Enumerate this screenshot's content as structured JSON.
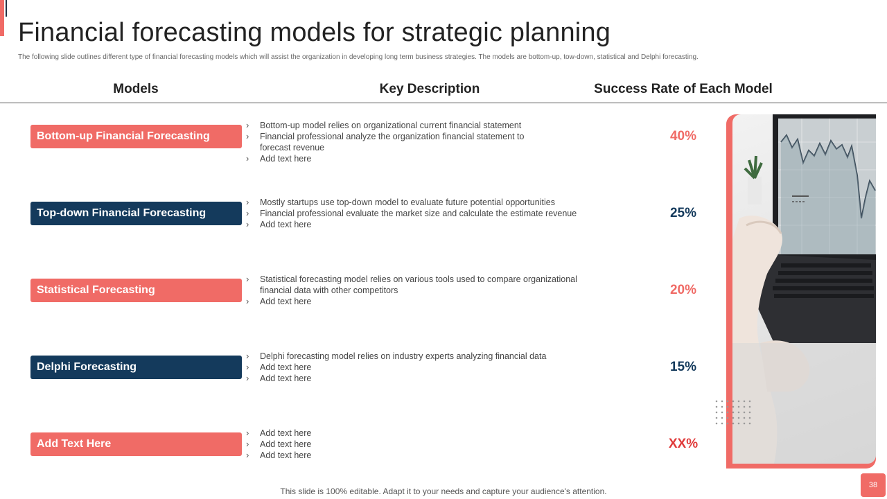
{
  "slide": {
    "title": "Financial forecasting models for strategic planning",
    "subtitle": "The following slide outlines different type of financial forecasting models which will assist the organization in developing long term business strategies. The models are bottom-up, tow-down, statistical and Delphi forecasting.",
    "headers": {
      "models": "Models",
      "description": "Key Description",
      "success": "Success Rate of Each Model"
    },
    "rows": [
      {
        "model": "Bottom-up Financial Forecasting",
        "bullets": [
          "Bottom-up model relies on organizational  current financial statement",
          "Financial  professional  analyze the organization  financial statement to forecast  revenue",
          "Add text here"
        ],
        "rate": "40%"
      },
      {
        "model": "Top-down Financial Forecasting",
        "bullets": [
          "Mostly startups use top-down  model to evaluate  future  potential opportunities",
          "Financial  professional  evaluate  the market size and calculate the estimate revenue",
          "Add text here"
        ],
        "rate": "25%"
      },
      {
        "model": "Statistical  Forecasting",
        "bullets": [
          "Statistical forecasting model relies on various  tools used to compare organizational financial data with other competitors",
          "Add text here"
        ],
        "rate": "20%"
      },
      {
        "model": "Delphi Forecasting",
        "bullets": [
          "Delphi forecasting  model relies on industry experts analyzing financial data",
          "Add text here",
          "Add text here"
        ],
        "rate": "15%"
      },
      {
        "model": "Add Text Here",
        "bullets": [
          "Add text here",
          "Add text here",
          "Add text here"
        ],
        "rate": "XX%"
      }
    ],
    "footer": "This slide is 100% editable. Adapt it to your needs and capture your audience's attention.",
    "page_number": "38",
    "photo_icon": "laptop-chart-photo",
    "colors": {
      "accent": "#f06b66",
      "navy": "#143a5c",
      "placeholder_rate": "#e03a3a"
    }
  }
}
